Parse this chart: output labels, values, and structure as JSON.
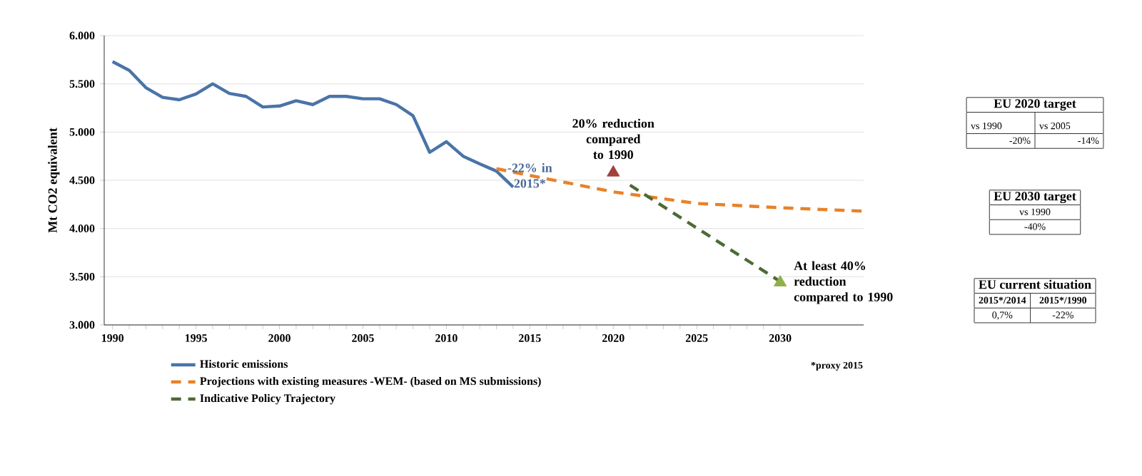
{
  "chart_data": {
    "type": "line",
    "ylabel": "Mt CO2 equivalent",
    "xlim": [
      1989.5,
      2035
    ],
    "xticks": [
      1990,
      1995,
      2000,
      2005,
      2010,
      2015,
      2020,
      2025,
      2030
    ],
    "ylim": [
      3000,
      6000
    ],
    "yticks": [
      {
        "value": 3000,
        "label": "3.000"
      },
      {
        "value": 3500,
        "label": "3.500"
      },
      {
        "value": 4000,
        "label": "4.000"
      },
      {
        "value": 4500,
        "label": "4.500"
      },
      {
        "value": 5000,
        "label": "5.000"
      },
      {
        "value": 5500,
        "label": "5.500"
      },
      {
        "value": 6000,
        "label": "6.000"
      }
    ],
    "grid": "y",
    "legend": "bottom",
    "marker": "none",
    "series": [
      {
        "name": "Historic emissions",
        "color": "#4a74a8",
        "line_style": "solid",
        "x": [
          1990,
          1991,
          1992,
          1993,
          1994,
          1995,
          1996,
          1997,
          1998,
          1999,
          2000,
          2001,
          2002,
          2003,
          2004,
          2005,
          2006,
          2007,
          2008,
          2009,
          2010,
          2011,
          2012,
          2013,
          2014
        ],
        "values": [
          5730,
          5640,
          5460,
          5360,
          5335,
          5395,
          5500,
          5400,
          5370,
          5260,
          5270,
          5325,
          5285,
          5370,
          5370,
          5345,
          5345,
          5285,
          5170,
          4790,
          4900,
          4750,
          4670,
          4595,
          4430
        ]
      },
      {
        "name": "Projections with existing measures -WEM- (based on MS submissions)",
        "color": "#e8822a",
        "line_style": "dashed",
        "x": [
          2013,
          2015,
          2020,
          2025,
          2030,
          2035
        ],
        "values": [
          4620,
          4550,
          4380,
          4260,
          4215,
          4180
        ]
      },
      {
        "name": "Indicative Policy Trajectory",
        "color": "#4d6b36",
        "line_style": "dashed",
        "x": [
          2021,
          2030
        ],
        "values": [
          4450,
          3450
        ]
      },
      {
        "type": "scatter",
        "marker": "triangle",
        "color": "#a0413c",
        "x": [
          2020
        ],
        "values": [
          4580
        ]
      },
      {
        "type": "scatter",
        "marker": "triangle",
        "color": "#8fb04b",
        "x": [
          2030
        ],
        "values": [
          3440
        ]
      }
    ],
    "annotations": [
      {
        "text": "-22% in 2015*",
        "x": 2015,
        "y": 4550
      },
      {
        "text": "20% reduction compared to 1990",
        "x": 2020,
        "y": 4580
      },
      {
        "text": "At least 40% reduction compared to 1990",
        "x": 2030,
        "y": 3440
      },
      "*proxy 2015",
      "EU 2020 target",
      "vs 1990",
      "vs 2005",
      "-20%",
      "-14%",
      "EU 2030 target",
      "vs 1990",
      "-40%",
      "EU current situation",
      "2015*/2014",
      "2015*/1990",
      "0,7%",
      "-22%"
    ]
  }
}
